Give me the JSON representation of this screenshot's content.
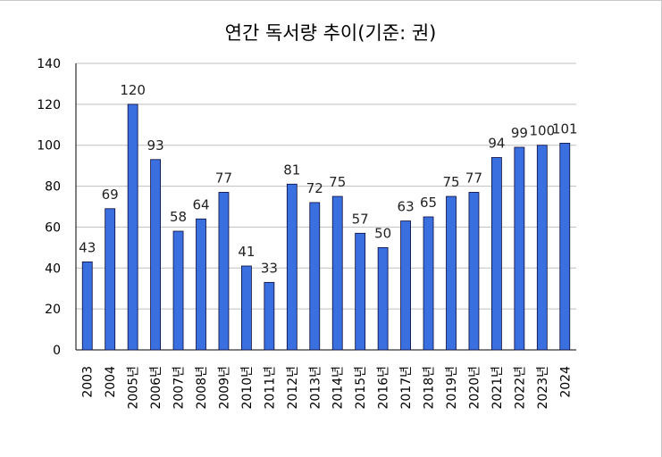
{
  "chart_data": {
    "type": "bar",
    "title": "연간 독서량 추이(기준: 권)",
    "categories": [
      "2003",
      "2004",
      "2005년",
      "2006년",
      "2007년",
      "2008년",
      "2009년",
      "2010년",
      "2011년",
      "2012년",
      "2013년",
      "2014년",
      "2015년",
      "2016년",
      "2017년",
      "2018년",
      "2019년",
      "2020년",
      "2021년",
      "2022년",
      "2023년",
      "2024"
    ],
    "values": [
      43,
      69,
      120,
      93,
      58,
      64,
      77,
      41,
      33,
      81,
      72,
      75,
      57,
      50,
      63,
      65,
      75,
      77,
      94,
      99,
      100,
      101
    ],
    "ylim": [
      0,
      140
    ],
    "yticks": [
      0,
      20,
      40,
      60,
      80,
      100,
      120,
      140
    ],
    "grid": true,
    "legend": "none",
    "bar_color": "#3a6fe0"
  }
}
